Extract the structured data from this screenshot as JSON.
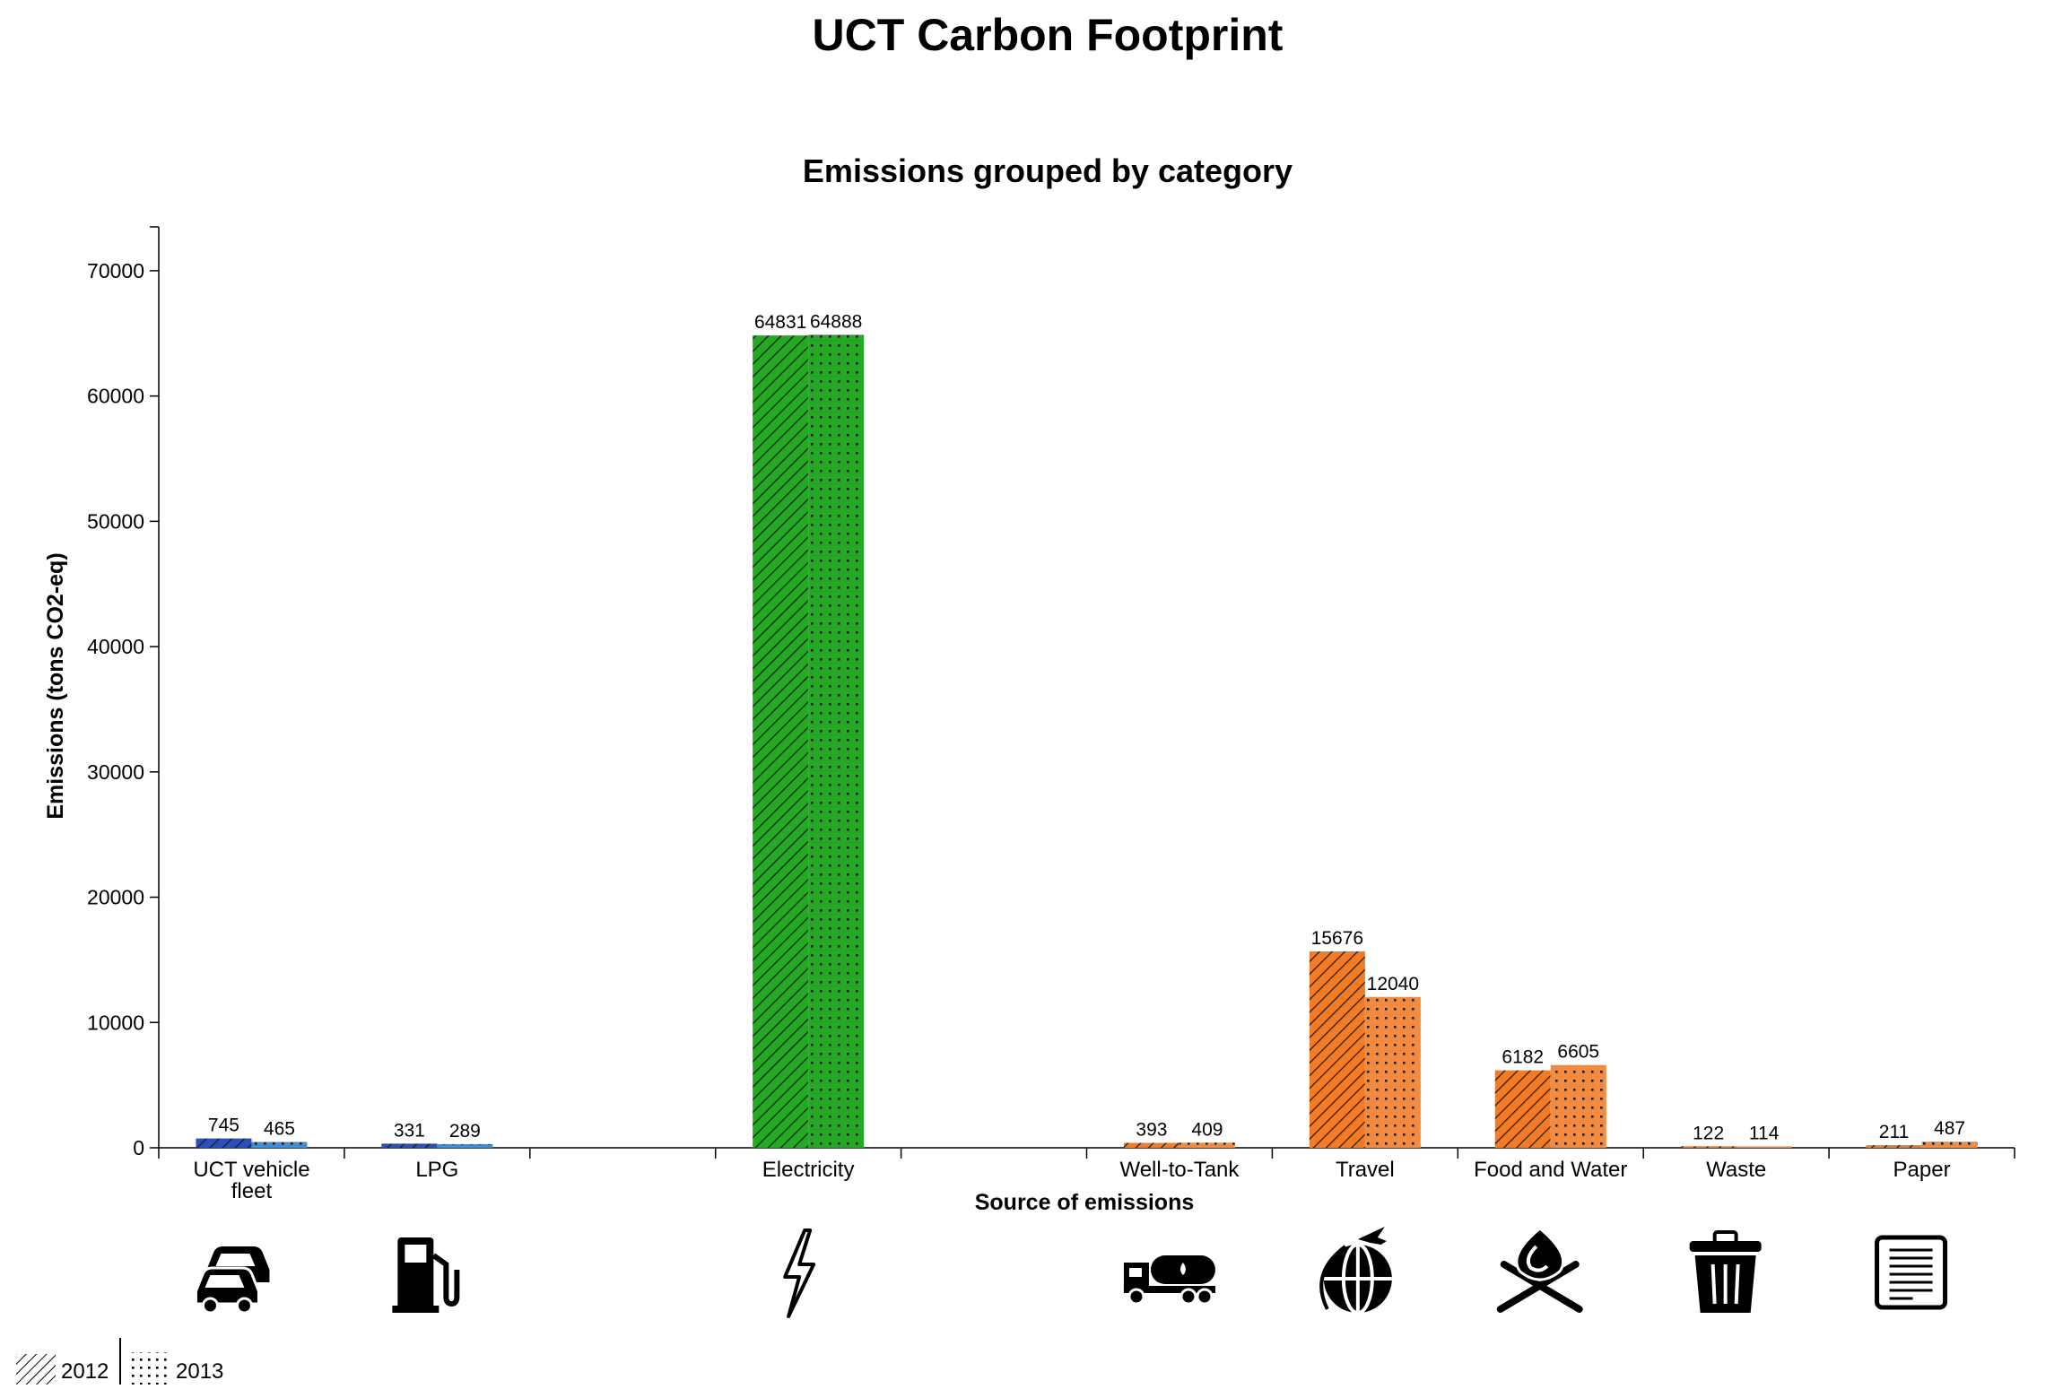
{
  "page_title": "UCT Carbon Footprint",
  "chart_data": {
    "type": "bar",
    "title": "Emissions grouped by category",
    "xlabel": "Source of emissions",
    "ylabel": "Emissions (tons CO2-eq)",
    "ylim": [
      0,
      73500
    ],
    "yticks": [
      0,
      10000,
      20000,
      30000,
      40000,
      50000,
      60000,
      70000
    ],
    "grid": false,
    "legend_position": "bottom-left",
    "categories": [
      {
        "label": "UCT vehicle fleet",
        "label_lines": [
          "UCT vehicle",
          "fleet"
        ],
        "icon": "cars-icon",
        "color_2012": "#2a4fbf",
        "color_2013": "#3a8fdc"
      },
      {
        "label": "LPG",
        "label_lines": [
          "LPG"
        ],
        "icon": "fuel-pump-icon",
        "color_2012": "#2a4fbf",
        "color_2013": "#3a8fdc"
      },
      {
        "label": "",
        "label_lines": [],
        "icon": "",
        "color_2012": "#22aa22",
        "color_2013": "#22aa22"
      },
      {
        "label": "Electricity",
        "label_lines": [
          "Electricity"
        ],
        "icon": "lightning-icon",
        "color_2012": "#22aa22",
        "color_2013": "#22aa22"
      },
      {
        "label": "",
        "label_lines": [],
        "icon": "",
        "color_2012": "#f47b20",
        "color_2013": "#f58a3c"
      },
      {
        "label": "Well-to-Tank",
        "label_lines": [
          "Well-to-Tank"
        ],
        "icon": "tanker-truck-icon",
        "color_2012": "#f47b20",
        "color_2013": "#f58a3c"
      },
      {
        "label": "Travel",
        "label_lines": [
          "Travel"
        ],
        "icon": "globe-plane-icon",
        "color_2012": "#f47b20",
        "color_2013": "#f58a3c"
      },
      {
        "label": "Food and Water",
        "label_lines": [
          "Food and Water"
        ],
        "icon": "food-water-icon",
        "color_2012": "#f47b20",
        "color_2013": "#f58a3c"
      },
      {
        "label": "Waste",
        "label_lines": [
          "Waste"
        ],
        "icon": "trash-icon",
        "color_2012": "#f47b20",
        "color_2013": "#f58a3c"
      },
      {
        "label": "Paper",
        "label_lines": [
          "Paper"
        ],
        "icon": "paper-icon",
        "color_2012": "#f47b20",
        "color_2013": "#f58a3c"
      }
    ],
    "series": [
      {
        "name": "2012",
        "pattern": "hatch",
        "values": [
          745,
          331,
          null,
          64831,
          null,
          393,
          15676,
          6182,
          122,
          211
        ]
      },
      {
        "name": "2013",
        "pattern": "dots",
        "values": [
          465,
          289,
          null,
          64888,
          null,
          409,
          12040,
          6605,
          114,
          487
        ]
      }
    ]
  }
}
